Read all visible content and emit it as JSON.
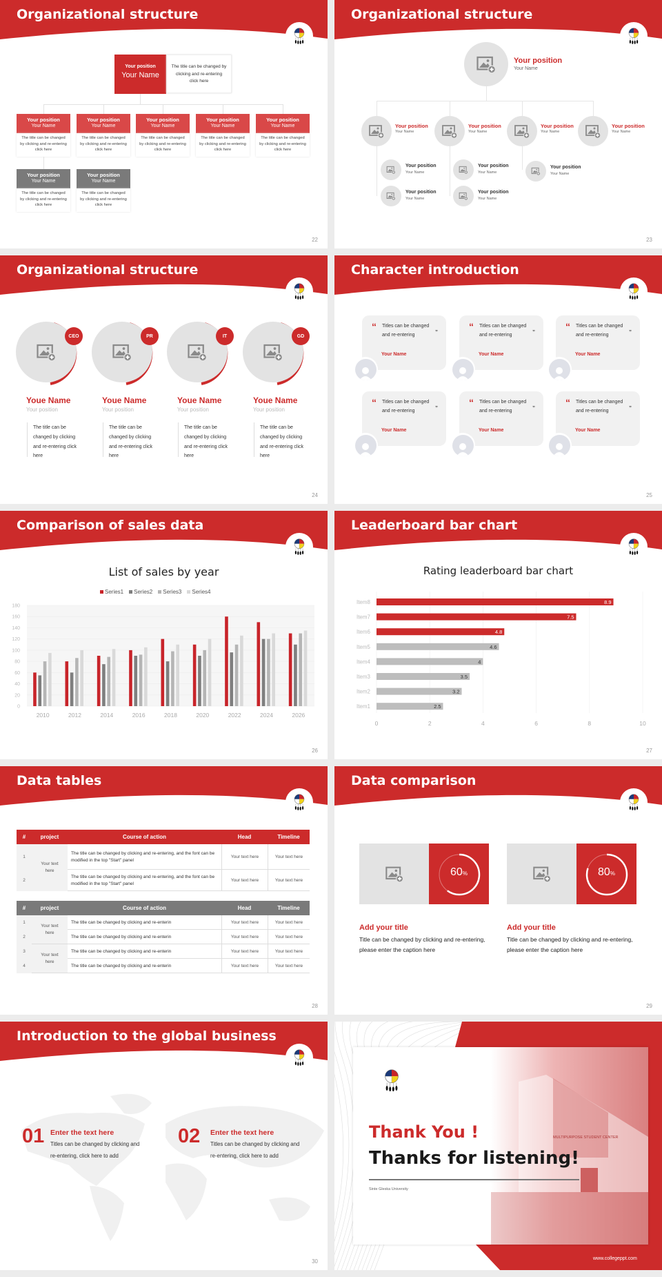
{
  "theme": {
    "red": "#cc2b2b",
    "light_red": "#d9534f",
    "gray": "#7a7a7a",
    "light_gray": "#e3e3e3"
  },
  "s22": {
    "title": "Organizational structure",
    "page": "22",
    "top": {
      "position": "Your position",
      "name": "Your Name",
      "desc": "The title can be changed by clicking and re-entering click here"
    },
    "row1": [
      {
        "position": "Your position",
        "name": "Your Name",
        "desc": "The title can be changed by clicking and re-entering click here"
      },
      {
        "position": "Your position",
        "name": "Your Name",
        "desc": "The title can be changed by clicking and re-entering click here"
      },
      {
        "position": "Your position",
        "name": "Your Name",
        "desc": "The title can be changed by clicking and re-entering click here"
      },
      {
        "position": "Your position",
        "name": "Your Name",
        "desc": "The title can be changed by clicking and re-entering click here"
      },
      {
        "position": "Your position",
        "name": "Your Name",
        "desc": "The title can be changed by clicking and re-entering click here"
      }
    ],
    "row2": [
      {
        "position": "Your position",
        "name": "Your Name",
        "desc": "The title can be changed by clicking and re-entering click here"
      },
      {
        "position": "Your position",
        "name": "Your Name",
        "desc": "The title can be changed by clicking and re-entering click here"
      }
    ]
  },
  "s23": {
    "title": "Organizational structure",
    "page": "23",
    "top": {
      "position": "Your position",
      "name": "Your Name"
    },
    "level2": [
      {
        "position": "Your position",
        "name": "Your Name"
      },
      {
        "position": "Your position",
        "name": "Your Name"
      },
      {
        "position": "Your position",
        "name": "Your Name"
      },
      {
        "position": "Your position",
        "name": "Your Name"
      }
    ],
    "level3": [
      {
        "position": "Your position",
        "name": "Your Name"
      },
      {
        "position": "Your position",
        "name": "Your Name"
      },
      {
        "position": "Your position",
        "name": "Your Name"
      },
      {
        "position": "Your position",
        "name": "Your Name"
      },
      {
        "position": "Your position",
        "name": "Your Name"
      }
    ]
  },
  "s24": {
    "title": "Organizational structure",
    "page": "24",
    "people": [
      {
        "badge": "CEO",
        "name": "Youe Name",
        "position": "Your position",
        "desc": "The title can be changed by clicking and re-entering click here"
      },
      {
        "badge": "PR",
        "name": "Youe Name",
        "position": "Your position",
        "desc": "The title can be changed by clicking and re-entering click here"
      },
      {
        "badge": "IT",
        "name": "Youe Name",
        "position": "Your position",
        "desc": "The title can be changed by clicking and re-entering click here"
      },
      {
        "badge": "GD",
        "name": "Youe Name",
        "position": "Your position",
        "desc": "The title can be changed by clicking and re-entering click here"
      }
    ]
  },
  "s25": {
    "title": "Character introduction",
    "page": "25",
    "cards": [
      {
        "text": "Titles can be changed and re-entering",
        "name": "Your Name"
      },
      {
        "text": "Titles can be changed and re-entering",
        "name": "Your Name"
      },
      {
        "text": "Titles can be changed and re-entering",
        "name": "Your Name"
      },
      {
        "text": "Titles can be changed and re-entering",
        "name": "Your Name"
      },
      {
        "text": "Titles can be changed and re-entering",
        "name": "Your Name"
      },
      {
        "text": "Titles can be changed and re-entering",
        "name": "Your Name"
      }
    ]
  },
  "s26": {
    "title": "Comparison of sales data",
    "page": "26"
  },
  "s27": {
    "title": "Leaderboard bar chart",
    "page": "27"
  },
  "chart_data": [
    {
      "type": "bar",
      "title": "List of sales by year",
      "categories": [
        "2010",
        "2012",
        "2014",
        "2016",
        "2018",
        "2020",
        "2022",
        "2024",
        "2026"
      ],
      "series": [
        {
          "name": "Series1",
          "color": "#c8242a",
          "values": [
            60,
            80,
            90,
            100,
            120,
            110,
            160,
            150,
            130
          ]
        },
        {
          "name": "Series2",
          "color": "#7f7f7f",
          "values": [
            55,
            60,
            75,
            90,
            80,
            90,
            96,
            120,
            110
          ]
        },
        {
          "name": "Series3",
          "color": "#b5b5b5",
          "values": [
            80,
            86,
            88,
            92,
            98,
            100,
            110,
            120,
            130
          ]
        },
        {
          "name": "Series4",
          "color": "#d9d9d9",
          "values": [
            95,
            100,
            102,
            105,
            110,
            120,
            126,
            130,
            135
          ]
        }
      ],
      "yticks": [
        "0",
        "20",
        "40",
        "60",
        "80",
        "100",
        "120",
        "140",
        "160",
        "180"
      ],
      "ylim": [
        0,
        180
      ],
      "legend": "top"
    },
    {
      "type": "bar",
      "orientation": "horizontal",
      "title": "Rating leaderboard bar chart",
      "categories": [
        "Item8",
        "Item7",
        "Item6",
        "Item5",
        "Item4",
        "Item3",
        "Item2",
        "Item1"
      ],
      "values": [
        8.9,
        7.5,
        4.8,
        4.6,
        4,
        3.5,
        3.2,
        2.5
      ],
      "labels": [
        "8.9",
        "7.5",
        "4.8",
        "4.6",
        "4",
        "3.5",
        "3.2",
        "2.5"
      ],
      "highlight_top": 3,
      "xticks": [
        "0",
        "2",
        "4",
        "6",
        "8",
        "10"
      ],
      "xlim": [
        0,
        10
      ]
    }
  ],
  "s28": {
    "title": "Data tables",
    "page": "28",
    "headers": [
      "#",
      "project",
      "Course of action",
      "Head",
      "Timeline"
    ],
    "table1": {
      "project": "Your text here",
      "rows": [
        {
          "n": "1",
          "action": "The title can be changed by clicking and re-entering, and the font can be modified in the top \"Start\" panel",
          "head": "Your text here",
          "timeline": "Your text here"
        },
        {
          "n": "2",
          "action": "The title can be changed by clicking and re-entering, and the font can be modified in the top \"Start\" panel",
          "head": "Your text here",
          "timeline": "Your text here"
        }
      ]
    },
    "table2": {
      "projects": [
        "Your text here",
        "Your text here"
      ],
      "rows": [
        {
          "n": "1",
          "action": "The title can be changed by clicking and re-enterin",
          "head": "Your text here",
          "timeline": "Your text here"
        },
        {
          "n": "2",
          "action": "The title can be changed by clicking and re-enterin",
          "head": "Your text here",
          "timeline": "Your text here"
        },
        {
          "n": "3",
          "action": "The title can be changed by clicking and re-enterin",
          "head": "Your text here",
          "timeline": "Your text here"
        },
        {
          "n": "4",
          "action": "The title can be changed by clicking and re-enterin",
          "head": "Your text here",
          "timeline": "Your text here"
        }
      ]
    }
  },
  "s29": {
    "title": "Data comparison",
    "page": "29",
    "items": [
      {
        "percent": 60,
        "value": "60",
        "unit": "%",
        "title": "Add your title",
        "caption": "Title can be changed by clicking and re-entering, please enter the caption here"
      },
      {
        "percent": 80,
        "value": "80",
        "unit": "%",
        "title": "Add your title",
        "caption": "Title can be changed by clicking and re-entering, please enter the caption here"
      }
    ]
  },
  "s30": {
    "title": "Introduction to the global business",
    "page": "30",
    "items": [
      {
        "num": "01",
        "title": "Enter the text here",
        "text": "Titles can be changed by clicking and re-entering, click here to add"
      },
      {
        "num": "02",
        "title": "Enter the text here",
        "text": "Titles can be changed by clicking and re-entering, click here to add"
      }
    ]
  },
  "s31": {
    "thanks": "Thank You !",
    "listening": "Thanks for listening!",
    "university": "Sinte Gleska University",
    "url": "www.collegeppt.com",
    "sign": "MULTIPURPOSE STUDENT CENTER"
  }
}
